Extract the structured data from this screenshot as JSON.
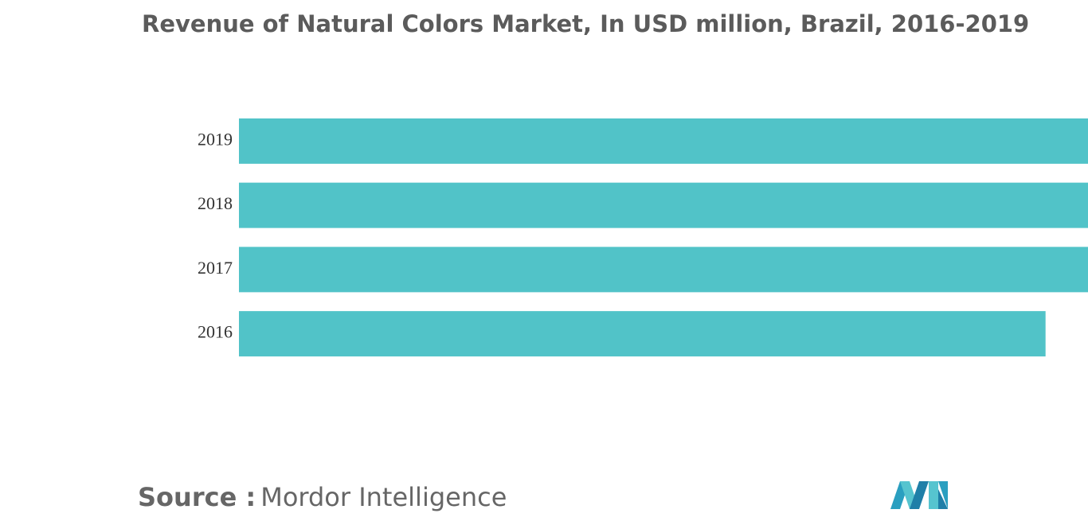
{
  "chart_data": {
    "type": "bar",
    "orientation": "horizontal",
    "title": "Revenue of Natural Colors Market, In USD million, Brazil, 2016-2019",
    "categories": [
      "2019",
      "2018",
      "2017",
      "2016"
    ],
    "values": [
      100,
      100,
      100,
      95
    ],
    "color": "#51c3c8",
    "xlim": [
      0,
      100
    ]
  },
  "source": {
    "label": "Source :",
    "text": "Mordor Intelligence"
  }
}
